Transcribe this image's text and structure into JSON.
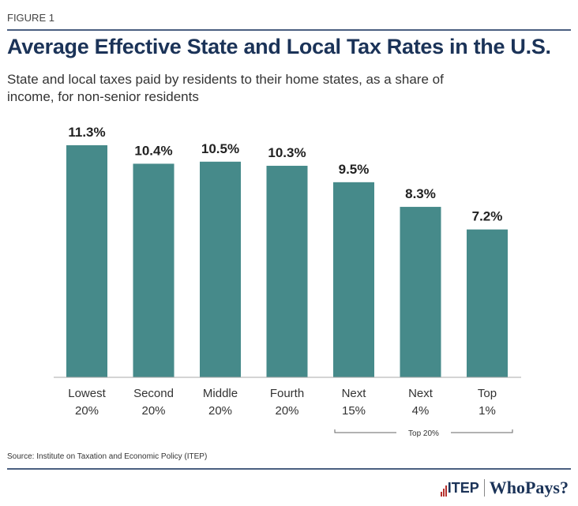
{
  "figure_label": "FIGURE 1",
  "chart_data": {
    "type": "bar",
    "title": "Average Effective State and Local Tax Rates in the U.S.",
    "subtitle": "State and local taxes paid by residents to their home states, as a share of income, for non-senior residents",
    "categories": [
      [
        "Lowest",
        "20%"
      ],
      [
        "Second",
        "20%"
      ],
      [
        "Middle",
        "20%"
      ],
      [
        "Fourth",
        "20%"
      ],
      [
        "Next",
        "15%"
      ],
      [
        "Next",
        "4%"
      ],
      [
        "Top",
        "1%"
      ]
    ],
    "values": [
      11.3,
      10.4,
      10.5,
      10.3,
      9.5,
      8.3,
      7.2
    ],
    "data_labels": [
      "11.3%",
      "10.4%",
      "10.5%",
      "10.3%",
      "9.5%",
      "8.3%",
      "7.2%"
    ],
    "bar_color": "#468a8a",
    "ylim": [
      0,
      11.3
    ],
    "grid": false,
    "group_bracket": {
      "label": "Top 20%",
      "from_index": 4,
      "to_index": 6
    }
  },
  "source": "Source: Institute on Taxation and Economic Policy (ITEP)",
  "logo": {
    "itep": "ITEP",
    "whopays": "WhoPays?"
  }
}
